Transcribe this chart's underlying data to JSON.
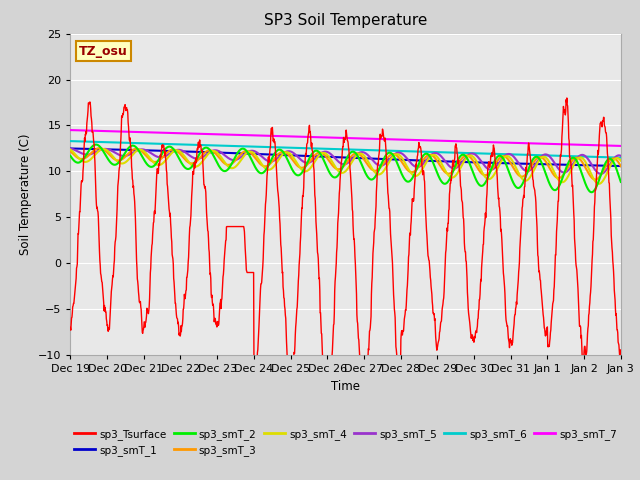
{
  "title": "SP3 Soil Temperature",
  "ylabel": "Soil Temperature (C)",
  "xlabel": "Time",
  "tz_label": "TZ_osu",
  "ylim": [
    -10,
    25
  ],
  "fig_bg": "#d4d4d4",
  "plot_bg": "#e8e8e8",
  "series_colors": {
    "sp3_Tsurface": "#ff0000",
    "sp3_smT_1": "#0000cc",
    "sp3_smT_2": "#00ee00",
    "sp3_smT_3": "#ff9900",
    "sp3_smT_4": "#dddd00",
    "sp3_smT_5": "#9933cc",
    "sp3_smT_6": "#00cccc",
    "sp3_smT_7": "#ff00ff"
  },
  "tick_labels": [
    "Dec 19",
    "Dec 20",
    "Dec 21",
    "Dec 22",
    "Dec 23",
    "Dec 24",
    "Dec 25",
    "Dec 26",
    "Dec 27",
    "Dec 28",
    "Dec 29",
    "Dec 30",
    "Dec 31",
    "Jan 1",
    "Jan 2",
    "Jan 3"
  ],
  "yticks": [
    -10,
    -5,
    0,
    5,
    10,
    15,
    20,
    25
  ],
  "n_days": 15
}
